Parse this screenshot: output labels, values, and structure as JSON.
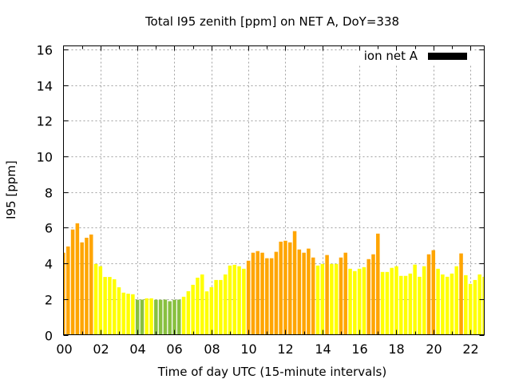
{
  "chart_data": {
    "type": "bar",
    "title": "Total I95 zenith [ppm] on NET A, DoY=338",
    "xlabel": "Time of day UTC (15-minute intervals)",
    "ylabel": "I95 [ppm]",
    "xlim": [
      0,
      22.75
    ],
    "ylim": [
      0,
      16.2
    ],
    "x_step_hours": 0.25,
    "x_ticks": [
      0,
      2,
      4,
      6,
      8,
      10,
      12,
      14,
      16,
      18,
      20,
      22
    ],
    "x_tick_labels": [
      "00",
      "02",
      "04",
      "06",
      "08",
      "10",
      "12",
      "14",
      "16",
      "18",
      "20",
      "22"
    ],
    "y_ticks": [
      0,
      2,
      4,
      6,
      8,
      10,
      12,
      14,
      16
    ],
    "y_tick_labels": [
      "0",
      "2",
      "4",
      "6",
      "8",
      "10",
      "12",
      "14",
      "16"
    ],
    "grid": true,
    "legend": {
      "label": "ion net A",
      "color": "#000000",
      "placement": "top-right"
    },
    "color_thresholds": [
      {
        "below": 2.0,
        "color": "#88c040",
        "name": "low"
      },
      {
        "below": 4.0,
        "color": "#ffff00",
        "name": "moderate"
      },
      {
        "below": 999,
        "color": "#ffa500",
        "name": "high"
      }
    ],
    "values": [
      4.6,
      4.95,
      5.9,
      6.25,
      5.18,
      5.44,
      5.62,
      3.97,
      3.84,
      3.24,
      3.24,
      3.11,
      2.66,
      2.36,
      2.3,
      2.27,
      1.96,
      1.97,
      2.04,
      2.04,
      1.96,
      1.96,
      1.97,
      1.88,
      1.96,
      1.97,
      2.13,
      2.44,
      2.8,
      3.2,
      3.38,
      2.43,
      2.67,
      3.07,
      3.07,
      3.38,
      3.88,
      3.92,
      3.84,
      3.7,
      4.15,
      4.6,
      4.69,
      4.6,
      4.29,
      4.29,
      4.65,
      5.22,
      5.27,
      5.18,
      5.81,
      4.78,
      4.6,
      4.83,
      4.33,
      3.88,
      3.97,
      4.47,
      3.97,
      3.97,
      4.33,
      4.6,
      3.7,
      3.57,
      3.7,
      3.79,
      4.24,
      4.51,
      5.67,
      3.52,
      3.52,
      3.75,
      3.84,
      3.3,
      3.3,
      3.43,
      3.93,
      3.25,
      3.84,
      4.51,
      4.74,
      3.7,
      3.38,
      3.25,
      3.43,
      3.84,
      4.56,
      3.34,
      2.85,
      3.07,
      3.38,
      3.25
    ]
  }
}
